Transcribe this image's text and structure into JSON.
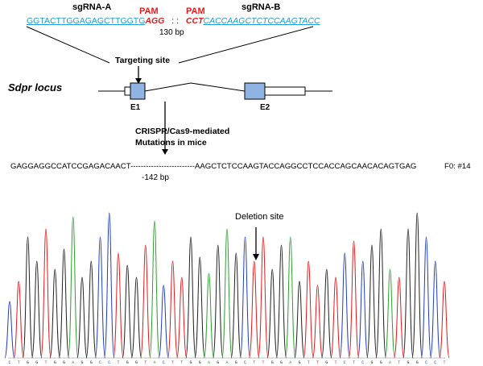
{
  "top": {
    "sgrna_a_label": "sgRNA-A",
    "sgrna_b_label": "sgRNA-B",
    "pam_left_label": "PAM",
    "pam_right_label": "PAM",
    "sgrna_a_seq": "GGTACTTGGAGAGCTTGGTG",
    "pam_a_seq": "AGG",
    "separator": ": :",
    "pam_b_seq": "CCT",
    "sgrna_b_seq": "CACCAAGCTCTCCAAGTACC",
    "gap_label": "130 bp"
  },
  "locus": {
    "targeting_label": "Targeting site",
    "locus_label": "Sdpr locus",
    "exon1_label": "E1",
    "exon2_label": "E2",
    "crispr_line1": "CRISPR/Cas9-mediated",
    "crispr_line2": "Mutations in mice"
  },
  "result": {
    "sequence": "GAGGAGGCCATCCGAGACAACT-------------------------AAGCTCTCCAAGTACCAGGCCTCCACCAGCAACACAGTGAG",
    "founder_label": "F0: #14",
    "deletion_label": "-142 bp"
  },
  "chromatogram": {
    "deletion_site_label": "Deletion site",
    "base_calls": "CTGGTGGAGGCCTGGTACTTGGAGAGCTTGGAGTTGTCTCGGATGGCCT",
    "colors": {
      "A": "#2ca02c",
      "C": "#1f3fbf",
      "G": "#222222",
      "T": "#e31a1c"
    }
  }
}
